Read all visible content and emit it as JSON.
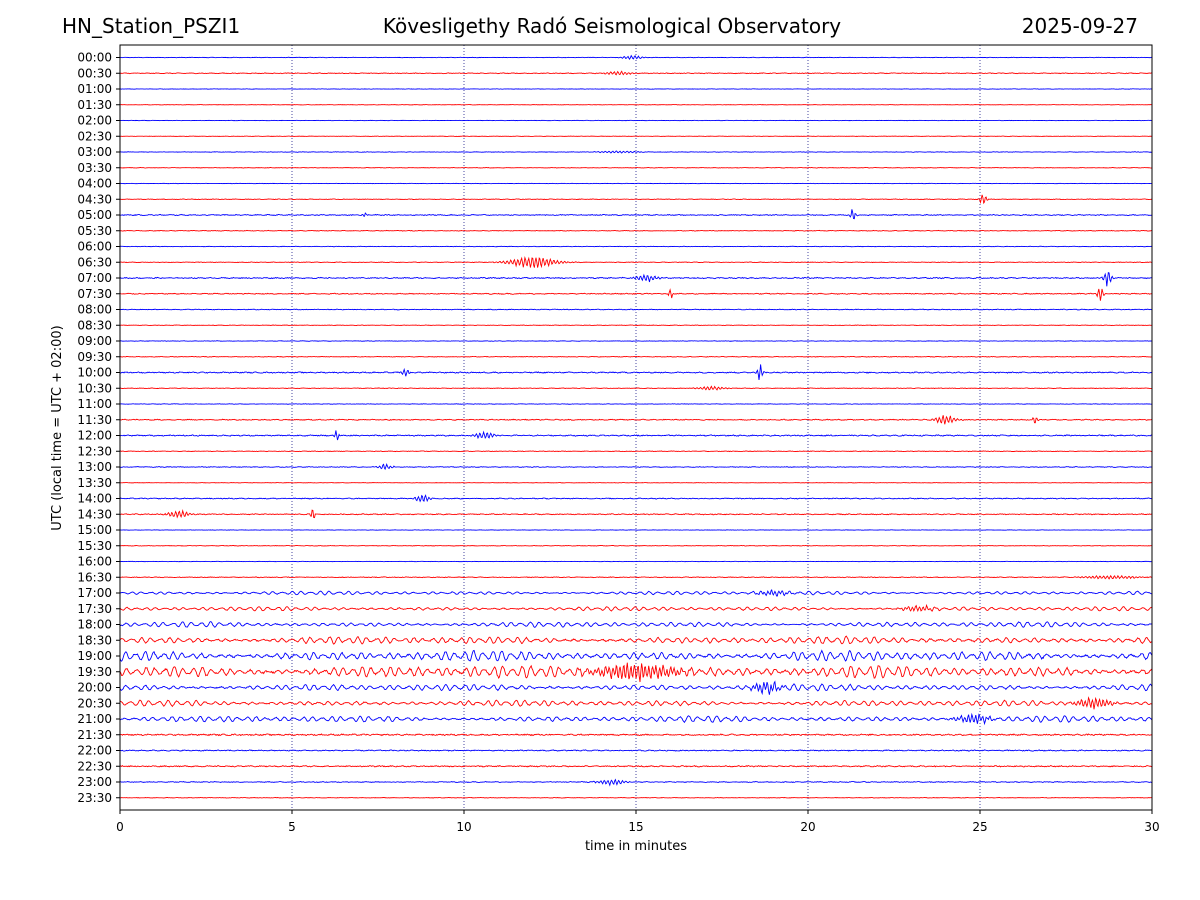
{
  "header": {
    "station": "HN_Station_PSZI1",
    "observatory": "Kövesligethy Radó Seismological Observatory",
    "date": "2025-09-27"
  },
  "chart_data": {
    "type": "line",
    "title": "Kövesligethy Radó Seismological Observatory",
    "xlabel": "time in minutes",
    "ylabel": "UTC (local time = UTC + 02:00)",
    "xlim": [
      0,
      30
    ],
    "x_ticks": [
      0,
      5,
      10,
      15,
      20,
      25,
      30
    ],
    "grid": "vertical dotted at x ticks",
    "colors": [
      "#0000ff",
      "#ff0000"
    ],
    "row_labels": [
      "00:00",
      "00:30",
      "01:00",
      "01:30",
      "02:00",
      "02:30",
      "03:00",
      "03:30",
      "04:00",
      "04:30",
      "05:00",
      "05:30",
      "06:00",
      "06:30",
      "07:00",
      "07:30",
      "08:00",
      "08:30",
      "09:00",
      "09:30",
      "10:00",
      "10:30",
      "11:00",
      "11:30",
      "12:00",
      "12:30",
      "13:00",
      "13:30",
      "14:00",
      "14:30",
      "15:00",
      "15:30",
      "16:00",
      "16:30",
      "17:00",
      "17:30",
      "18:00",
      "18:30",
      "19:00",
      "19:30",
      "20:00",
      "20:30",
      "21:00",
      "21:30",
      "22:00",
      "22:30",
      "23:00",
      "23:30"
    ],
    "noise_level": [
      0.4,
      0.6,
      0.3,
      0.3,
      0.3,
      0.3,
      0.4,
      0.4,
      0.3,
      0.5,
      0.8,
      0.5,
      0.4,
      0.5,
      0.9,
      0.8,
      0.6,
      0.4,
      0.4,
      0.5,
      1.0,
      0.5,
      0.4,
      0.8,
      1.0,
      0.5,
      0.6,
      0.3,
      0.8,
      0.8,
      0.3,
      0.4,
      0.3,
      0.6,
      2.0,
      2.2,
      2.8,
      4.0,
      5.5,
      6.5,
      3.6,
      3.2,
      3.4,
      1.2,
      0.9,
      1.0,
      0.7,
      0.4
    ],
    "events": [
      {
        "row": "00:00",
        "t": 14.9,
        "amp": 2.0,
        "width": 0.3
      },
      {
        "row": "00:30",
        "t": 14.5,
        "amp": 2.0,
        "width": 0.4
      },
      {
        "row": "03:00",
        "t": 14.5,
        "amp": 1.2,
        "width": 0.6
      },
      {
        "row": "04:30",
        "t": 25.1,
        "amp": 7.0,
        "width": 0.1
      },
      {
        "row": "05:00",
        "t": 21.3,
        "amp": 8.0,
        "width": 0.08
      },
      {
        "row": "05:00",
        "t": 7.1,
        "amp": 3.0,
        "width": 0.06
      },
      {
        "row": "06:30",
        "t": 12.0,
        "amp": 6.0,
        "width": 0.7
      },
      {
        "row": "07:00",
        "t": 28.7,
        "amp": 9.0,
        "width": 0.12
      },
      {
        "row": "07:00",
        "t": 15.3,
        "amp": 4.0,
        "width": 0.3
      },
      {
        "row": "07:30",
        "t": 16.0,
        "amp": 8.0,
        "width": 0.06
      },
      {
        "row": "07:30",
        "t": 28.5,
        "amp": 8.0,
        "width": 0.1
      },
      {
        "row": "10:00",
        "t": 18.6,
        "amp": 10.0,
        "width": 0.08
      },
      {
        "row": "10:00",
        "t": 8.3,
        "amp": 4.0,
        "width": 0.1
      },
      {
        "row": "10:30",
        "t": 17.2,
        "amp": 2.0,
        "width": 0.4
      },
      {
        "row": "11:30",
        "t": 24.0,
        "amp": 5.0,
        "width": 0.3
      },
      {
        "row": "11:30",
        "t": 26.6,
        "amp": 6.0,
        "width": 0.06
      },
      {
        "row": "12:00",
        "t": 6.3,
        "amp": 6.0,
        "width": 0.06
      },
      {
        "row": "12:00",
        "t": 10.6,
        "amp": 4.0,
        "width": 0.3
      },
      {
        "row": "13:00",
        "t": 7.7,
        "amp": 3.0,
        "width": 0.25
      },
      {
        "row": "14:00",
        "t": 8.8,
        "amp": 5.0,
        "width": 0.2
      },
      {
        "row": "14:30",
        "t": 5.6,
        "amp": 8.0,
        "width": 0.06
      },
      {
        "row": "14:30",
        "t": 1.7,
        "amp": 4.0,
        "width": 0.3
      },
      {
        "row": "16:30",
        "t": 28.8,
        "amp": 2.0,
        "width": 0.8
      },
      {
        "row": "17:00",
        "t": 19.0,
        "amp": 3.0,
        "width": 0.5
      },
      {
        "row": "17:30",
        "t": 23.2,
        "amp": 3.0,
        "width": 0.5
      },
      {
        "row": "19:30",
        "t": 15.0,
        "amp": 9.0,
        "width": 1.2
      },
      {
        "row": "20:00",
        "t": 18.8,
        "amp": 6.0,
        "width": 0.4
      },
      {
        "row": "20:30",
        "t": 28.3,
        "amp": 6.0,
        "width": 0.5
      },
      {
        "row": "21:00",
        "t": 24.8,
        "amp": 5.0,
        "width": 0.5
      },
      {
        "row": "23:00",
        "t": 14.3,
        "amp": 3.0,
        "width": 0.4
      }
    ]
  }
}
